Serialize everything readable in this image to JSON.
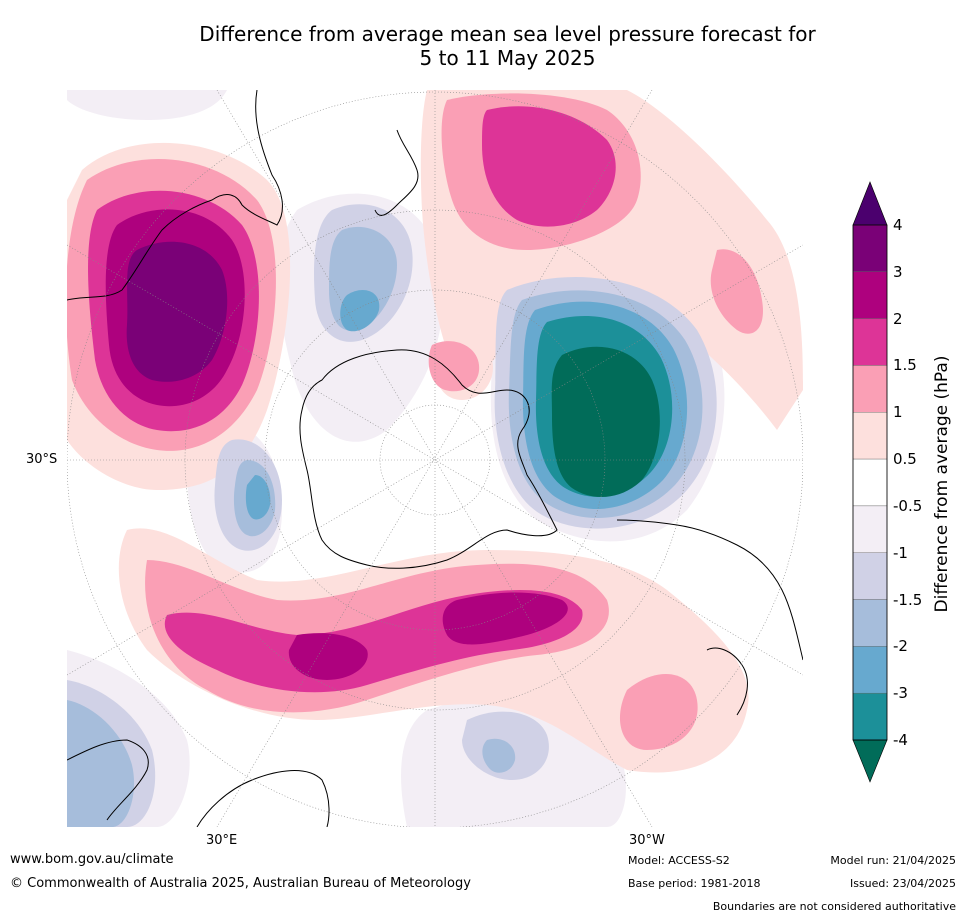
{
  "title_line1": "Difference from average mean sea level pressure forecast for",
  "title_line2": "5 to 11 May 2025",
  "map": {
    "lat_label": "30°S",
    "lon_labels": [
      "30°E",
      "30°W"
    ],
    "colors": {
      "land_line": "#000000",
      "graticule": "#888888"
    }
  },
  "colorbar": {
    "title": "Difference from average (hPa)",
    "ticks": [
      "4",
      "3",
      "2",
      "1.5",
      "1",
      "0.5",
      "-0.5",
      "-1",
      "-1.5",
      "-2",
      "-3",
      "-4"
    ],
    "colors": [
      "#4b006e",
      "#7a0177",
      "#ae017e",
      "#dd3497",
      "#fa9fb5",
      "#fde0dd",
      "#ffffff",
      "#f3eef5",
      "#d0d1e6",
      "#a6bddb",
      "#67a9cf",
      "#1c9099",
      "#016c59"
    ]
  },
  "footer": {
    "url": "www.bom.gov.au/climate",
    "copyright": "© Commonwealth of Australia 2025, Australian Bureau of Meteorology",
    "model": "Model: ACCESS-S2",
    "base_period": "Base period: 1981-2018",
    "model_run": "Model run: 21/04/2025",
    "issued": "Issued: 23/04/2025",
    "boundaries": "Boundaries are not considered authoritative"
  }
}
